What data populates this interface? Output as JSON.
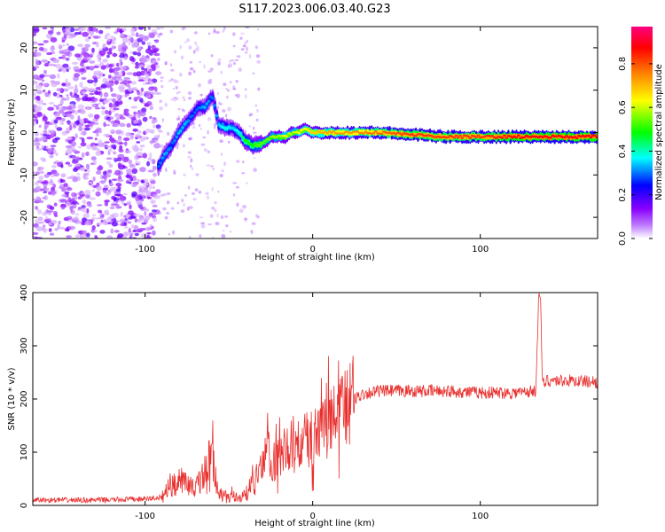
{
  "figure_title": "S117.2023.006.03.40.G23",
  "chart_data": [
    {
      "type": "heatmap",
      "title": "",
      "xlabel": "Height of straight line (km)",
      "ylabel": "Frequency (Hz)",
      "xlim": [
        -167,
        170
      ],
      "ylim": [
        -25,
        25
      ],
      "xticks": [
        -100,
        0,
        100
      ],
      "yticks": [
        -20,
        -10,
        0,
        10,
        20
      ],
      "colorbar": {
        "label": "Normalized spectral amplitude",
        "range": [
          0.0,
          0.97
        ],
        "ticks": [
          0.0,
          0.2,
          0.4,
          0.6,
          0.8
        ],
        "colormap": [
          "#ffffff",
          "#8a00ff",
          "#0000ff",
          "#00ffff",
          "#00ff00",
          "#ffff00",
          "#ff8000",
          "#ff0000",
          "#ff00a0"
        ]
      },
      "noise_region_x": [
        -167,
        -92
      ],
      "ridge": {
        "x": [
          -92,
          -88,
          -84,
          -80,
          -76,
          -72,
          -68,
          -64,
          -60,
          -56,
          -52,
          -48,
          -44,
          -40,
          -36,
          -32,
          -28,
          -24,
          -20,
          -16,
          -12,
          -8,
          -4,
          0,
          10,
          20,
          40,
          60,
          80,
          100,
          120,
          140,
          170
        ],
        "frequency": [
          -8,
          -5,
          -3,
          0,
          2,
          4,
          6,
          6,
          9,
          2,
          1,
          1,
          0,
          -2,
          -3,
          -3,
          -2,
          -1,
          -1,
          -1,
          0,
          0,
          1,
          0,
          0,
          0,
          0,
          -0.5,
          -1,
          -1,
          -1,
          -1,
          -1
        ],
        "amplitude": [
          0.3,
          0.35,
          0.3,
          0.35,
          0.35,
          0.3,
          0.3,
          0.35,
          0.3,
          0.35,
          0.4,
          0.35,
          0.4,
          0.5,
          0.5,
          0.55,
          0.55,
          0.6,
          0.6,
          0.65,
          0.6,
          0.65,
          0.65,
          0.7,
          0.75,
          0.75,
          0.8,
          0.85,
          0.85,
          0.85,
          0.9,
          0.9,
          0.9
        ]
      }
    },
    {
      "type": "line",
      "title": "",
      "xlabel": "Height of straight line (km)",
      "ylabel": "SNR (10 * v/v)",
      "xlim": [
        -167,
        170
      ],
      "ylim": [
        0,
        400
      ],
      "xticks": [
        -100,
        0,
        100
      ],
      "yticks": [
        0,
        100,
        200,
        300,
        400
      ],
      "color": "#e8302e",
      "series": [
        {
          "x": [
            -167,
            -130,
            -100,
            -90,
            -85,
            -80,
            -70,
            -65,
            -60,
            -58,
            -55,
            -50,
            -45,
            -40,
            -35,
            -30,
            -27,
            -25,
            -20,
            -15,
            -10,
            -5,
            0,
            5,
            10,
            15,
            20,
            25,
            30,
            40,
            60,
            80,
            100,
            120,
            133,
            135,
            136,
            137,
            138,
            140,
            150,
            170
          ],
          "y": [
            10,
            10,
            12,
            15,
            40,
            50,
            30,
            60,
            100,
            40,
            20,
            15,
            15,
            20,
            45,
            70,
            130,
            80,
            90,
            110,
            110,
            120,
            125,
            140,
            160,
            170,
            190,
            200,
            210,
            215,
            215,
            215,
            212,
            212,
            215,
            400,
            390,
            230,
            230,
            235,
            235,
            232
          ]
        }
      ]
    }
  ]
}
